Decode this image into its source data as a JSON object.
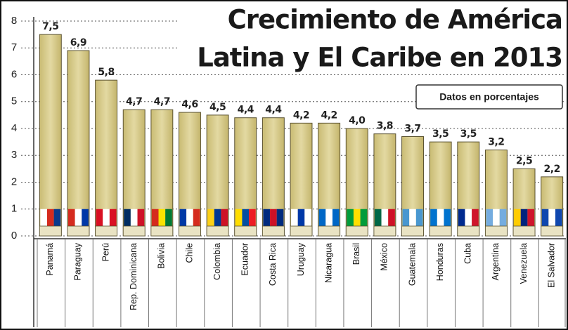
{
  "chart_data": {
    "type": "bar",
    "title": [
      "Crecimiento de América",
      "Latina y El Caribe en 2013"
    ],
    "subtitle": "Datos en porcentajes",
    "categories": [
      "Panamá",
      "Paraguay",
      "Perú",
      "Rep. Dominicana",
      "Bolivia",
      "Chile",
      "Colombia",
      "Ecuador",
      "Costa Rica",
      "Uruguay",
      "Nicaragua",
      "Brasil",
      "México",
      "Guatemala",
      "Honduras",
      "Cuba",
      "Argentina",
      "Venezuela",
      "El Salvador"
    ],
    "values": [
      7.5,
      6.9,
      5.8,
      4.7,
      4.7,
      4.6,
      4.5,
      4.4,
      4.4,
      4.2,
      4.2,
      4.0,
      3.8,
      3.7,
      3.5,
      3.5,
      3.2,
      2.5,
      2.2
    ],
    "value_labels": [
      "7,5",
      "6,9",
      "5,8",
      "4,7",
      "4,7",
      "4,6",
      "4,5",
      "4,4",
      "4,4",
      "4,2",
      "4,2",
      "4,0",
      "3,8",
      "3,7",
      "3,5",
      "3,5",
      "3,2",
      "2,5",
      "2,2"
    ],
    "color": "#d9cd8c",
    "ylim": [
      0,
      8
    ],
    "yticks": [
      0,
      1,
      2,
      3,
      4,
      5,
      6,
      7,
      8
    ],
    "grid": true
  }
}
